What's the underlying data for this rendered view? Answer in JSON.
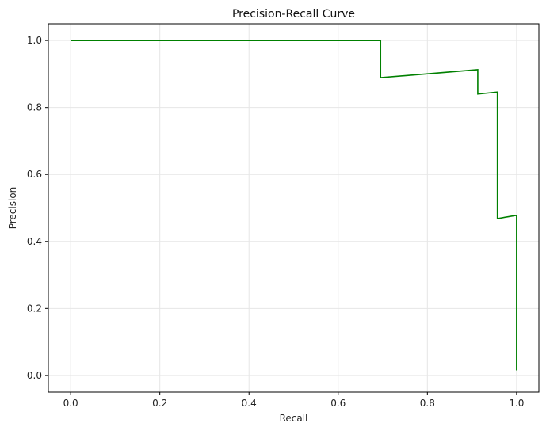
{
  "chart_data": {
    "type": "line",
    "title": "Precision-Recall Curve",
    "xlabel": "Recall",
    "ylabel": "Precision",
    "xlim": [
      -0.05,
      1.05
    ],
    "ylim": [
      -0.05,
      1.05
    ],
    "xticks": [
      0.0,
      0.2,
      0.4,
      0.6,
      0.8,
      1.0
    ],
    "yticks": [
      0.0,
      0.2,
      0.4,
      0.6,
      0.8,
      1.0
    ],
    "xtick_labels": [
      "0.0",
      "0.2",
      "0.4",
      "0.6",
      "0.8",
      "1.0"
    ],
    "ytick_labels": [
      "0.0",
      "0.2",
      "0.4",
      "0.6",
      "0.8",
      "1.0"
    ],
    "grid": true,
    "legend": "none",
    "line_color": "#008000",
    "series": [
      {
        "x": [
          0.0,
          0.695,
          0.695,
          0.913,
          0.913,
          0.957,
          0.957,
          1.0,
          1.0
        ],
        "y": [
          1.0,
          1.0,
          0.889,
          0.913,
          0.84,
          0.846,
          0.468,
          0.478,
          0.015
        ]
      }
    ]
  }
}
